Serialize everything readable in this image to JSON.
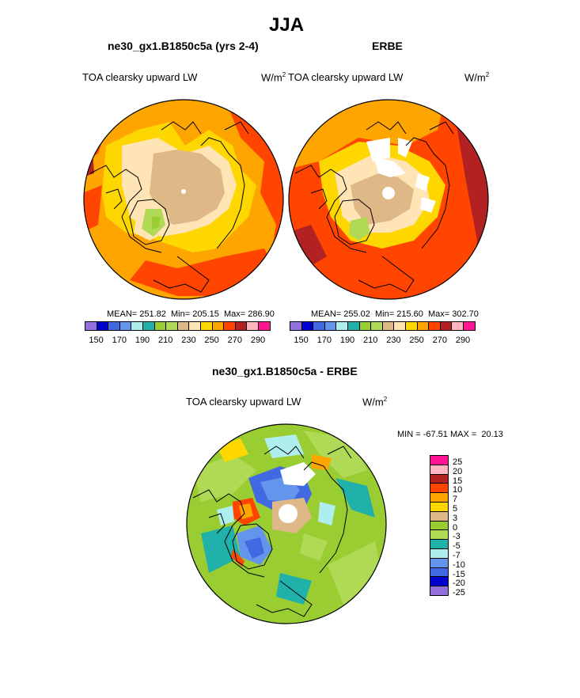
{
  "season_title": "JJA",
  "panels": {
    "model": {
      "case_title": "ne30_gx1.B1850c5a (yrs 2-4)",
      "field": "TOA clearsky upward LW",
      "units_base": "W/m",
      "units_exp": "2",
      "stats": "MEAN= 251.82  Min= 205.15  Max= 286.90"
    },
    "obs": {
      "case_title": "ERBE",
      "field": "TOA clearsky upward LW",
      "units_base": "W/m",
      "units_exp": "2",
      "stats": "MEAN= 255.02  Min= 215.60  Max= 302.70"
    },
    "diff": {
      "case_title": "ne30_gx1.B1850c5a - ERBE",
      "field": "TOA clearsky upward LW",
      "units_base": "W/m",
      "units_exp": "2",
      "stats": "MIN = -67.51 MAX =  20.13"
    }
  },
  "abs_colorbar": {
    "colors": [
      "#9370db",
      "#0000cd",
      "#4169e1",
      "#6495ed",
      "#afeeee",
      "#20b2aa",
      "#9acd32",
      "#b0d956",
      "#deb887",
      "#ffe4b5",
      "#ffd700",
      "#ffa500",
      "#ff4500",
      "#b22222",
      "#ffb6c1",
      "#ff1493"
    ],
    "tick_labels": [
      "150",
      "170",
      "190",
      "210",
      "230",
      "250",
      "270",
      "290"
    ]
  },
  "diff_colorbar": {
    "colors": [
      "#ff1493",
      "#ffb6c1",
      "#b22222",
      "#ff4500",
      "#ffa500",
      "#ffd700",
      "#deb887",
      "#9acd32",
      "#b0d956",
      "#20b2aa",
      "#afeeee",
      "#6495ed",
      "#4169e1",
      "#0000cd",
      "#9370db"
    ],
    "tick_labels": [
      "25",
      "20",
      "15",
      "10",
      "7",
      "5",
      "3",
      "0",
      "-3",
      "-5",
      "-7",
      "-10",
      "-15",
      "-20",
      "-25"
    ]
  }
}
